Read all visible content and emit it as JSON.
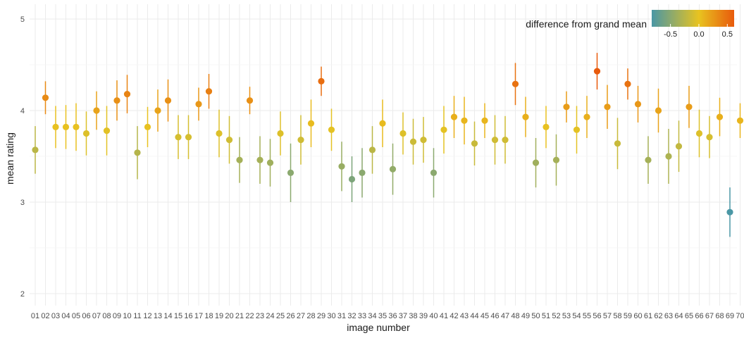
{
  "chart_data": {
    "type": "scatter",
    "xlabel": "image number",
    "ylabel": "mean rating",
    "ylim": [
      2,
      5
    ],
    "yticks": [
      "2",
      "3",
      "4",
      "5"
    ],
    "grid": true,
    "legend": {
      "title": "difference from grand mean",
      "placement": "top-right",
      "ticks": [
        "-0.5",
        "0.0",
        "0.5"
      ],
      "tick_values": [
        -0.5,
        0.0,
        0.5
      ],
      "range": [
        -0.83,
        0.62
      ],
      "colors": [
        "#4a97a5",
        "#e8c320",
        "#e85a0c"
      ]
    },
    "grand_mean": 3.81,
    "categories": [
      "01",
      "02",
      "03",
      "04",
      "05",
      "06",
      "07",
      "08",
      "09",
      "10",
      "11",
      "12",
      "13",
      "14",
      "15",
      "16",
      "17",
      "18",
      "19",
      "20",
      "21",
      "22",
      "23",
      "24",
      "25",
      "26",
      "27",
      "28",
      "29",
      "30",
      "31",
      "32",
      "33",
      "34",
      "35",
      "36",
      "37",
      "38",
      "39",
      "40",
      "41",
      "42",
      "43",
      "44",
      "45",
      "46",
      "47",
      "48",
      "49",
      "50",
      "51",
      "52",
      "53",
      "54",
      "55",
      "56",
      "57",
      "58",
      "59",
      "60",
      "61",
      "62",
      "63",
      "64",
      "65",
      "66",
      "67",
      "68",
      "69",
      "70"
    ],
    "series": [
      {
        "mean": [
          3.57,
          4.14,
          3.82,
          3.82,
          3.82,
          3.75,
          4.0,
          3.78,
          4.11,
          4.18,
          3.54,
          3.82,
          4.0,
          4.11,
          3.71,
          3.71,
          4.07,
          4.21,
          3.75,
          3.68,
          3.46,
          4.11,
          3.46,
          3.43,
          3.75,
          3.32,
          3.68,
          3.86,
          4.32,
          3.79,
          3.39,
          3.25,
          3.32,
          3.57,
          3.86,
          3.36,
          3.75,
          3.66,
          3.68,
          3.32,
          3.79,
          3.93,
          3.89,
          3.64,
          3.89,
          3.68,
          3.68,
          4.29,
          3.93,
          3.43,
          3.82,
          3.46,
          4.04,
          3.79,
          3.93,
          4.43,
          4.04,
          3.64,
          4.29,
          4.07,
          3.46,
          4.0,
          3.5,
          3.61,
          4.04,
          3.75,
          3.71,
          3.93,
          2.89,
          3.89
        ],
        "lower": [
          3.31,
          3.96,
          3.59,
          3.58,
          3.56,
          3.51,
          3.79,
          3.51,
          3.89,
          3.97,
          3.25,
          3.6,
          3.77,
          3.88,
          3.47,
          3.47,
          3.89,
          4.02,
          3.49,
          3.42,
          3.21,
          3.96,
          3.2,
          3.17,
          3.51,
          3.0,
          3.41,
          3.6,
          4.16,
          3.56,
          3.12,
          3.0,
          3.05,
          3.31,
          3.6,
          3.08,
          3.52,
          3.41,
          3.43,
          3.05,
          3.53,
          3.7,
          3.63,
          3.4,
          3.7,
          3.41,
          3.42,
          4.06,
          3.71,
          3.16,
          3.59,
          3.18,
          3.87,
          3.53,
          3.7,
          4.23,
          3.8,
          3.36,
          4.12,
          3.87,
          3.2,
          3.76,
          3.2,
          3.33,
          3.81,
          3.49,
          3.48,
          3.72,
          2.62,
          3.7
        ],
        "upper": [
          3.83,
          4.32,
          4.05,
          4.06,
          4.08,
          3.99,
          4.21,
          4.05,
          4.33,
          4.39,
          3.83,
          4.04,
          4.23,
          4.34,
          3.95,
          3.95,
          4.25,
          4.4,
          4.01,
          3.94,
          3.71,
          4.26,
          3.72,
          3.69,
          3.99,
          3.64,
          3.95,
          4.12,
          4.48,
          4.02,
          3.66,
          3.5,
          3.59,
          3.83,
          4.12,
          3.64,
          3.98,
          3.91,
          3.93,
          3.59,
          4.05,
          4.16,
          4.15,
          3.88,
          4.08,
          3.95,
          3.94,
          4.52,
          4.15,
          3.7,
          4.05,
          3.74,
          4.21,
          4.05,
          4.16,
          4.63,
          4.28,
          3.92,
          4.46,
          4.27,
          3.72,
          4.24,
          3.8,
          3.89,
          4.27,
          4.01,
          3.94,
          4.14,
          3.16,
          4.08
        ]
      }
    ]
  }
}
